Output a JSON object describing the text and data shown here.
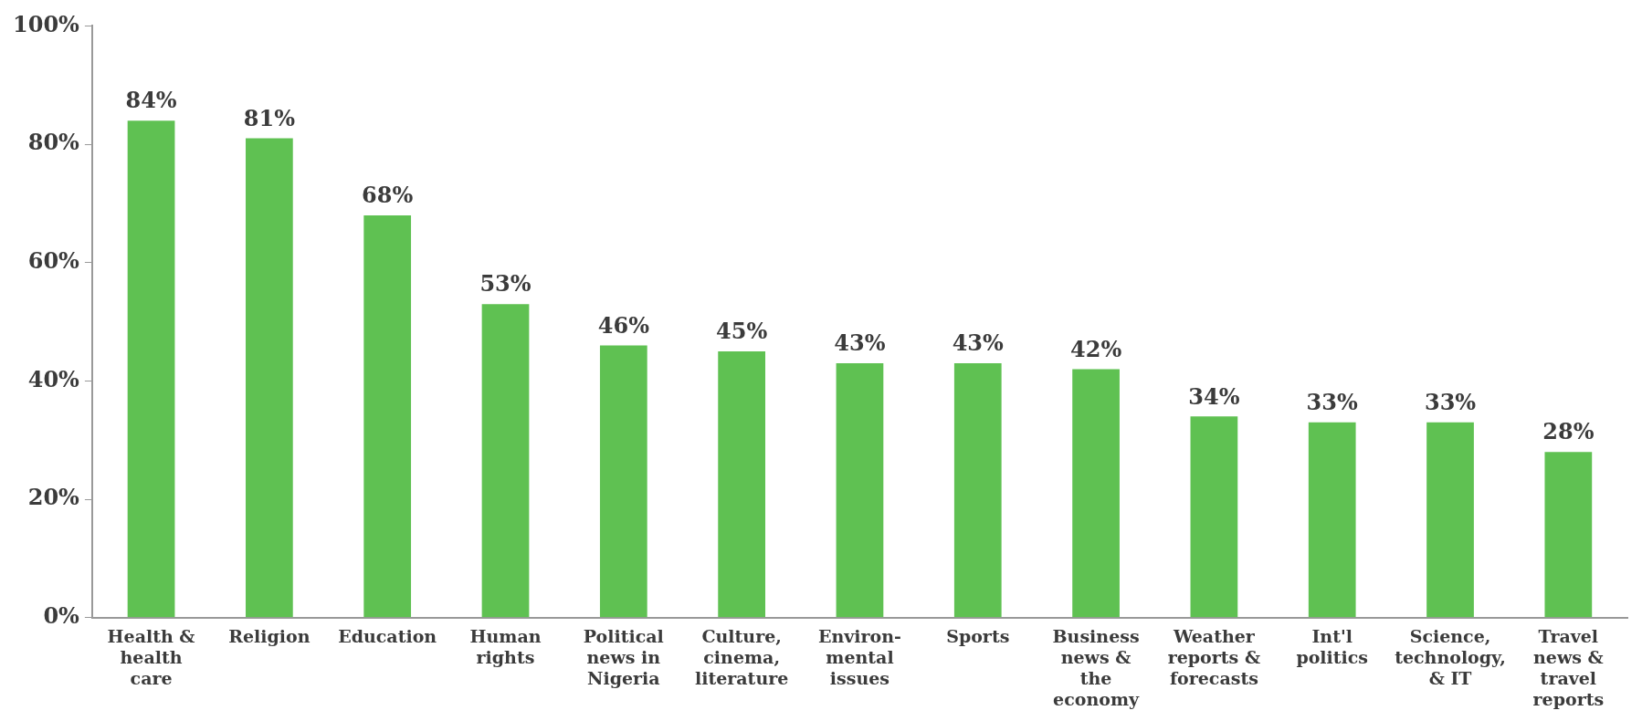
{
  "chart_data": {
    "type": "bar",
    "categories": [
      "Health & health care",
      "Religion",
      "Education",
      "Human rights",
      "Political news in Nigeria",
      "Culture, cinema, literature",
      "Environ-mental issues",
      "Sports",
      "Business news & the economy",
      "Weather reports & forecasts",
      "Int'l politics",
      "Science, technology, & IT",
      "Travel news & travel reports"
    ],
    "values": [
      84,
      81,
      68,
      53,
      46,
      45,
      43,
      43,
      42,
      34,
      33,
      33,
      28
    ],
    "color": "#5fc152",
    "ylim": [
      0,
      100
    ],
    "yticks": [
      {
        "value": 0,
        "label": "0%"
      },
      {
        "value": 20,
        "label": "20%"
      },
      {
        "value": 40,
        "label": "40%"
      },
      {
        "value": 60,
        "label": "60%"
      },
      {
        "value": 80,
        "label": "80%"
      },
      {
        "value": 100,
        "label": "100%"
      }
    ],
    "value_labels": [
      "84%",
      "81%",
      "68%",
      "53%",
      "46%",
      "45%",
      "43%",
      "43%",
      "42%",
      "34%",
      "33%",
      "33%",
      "28%"
    ],
    "grid": false,
    "legend": false
  }
}
